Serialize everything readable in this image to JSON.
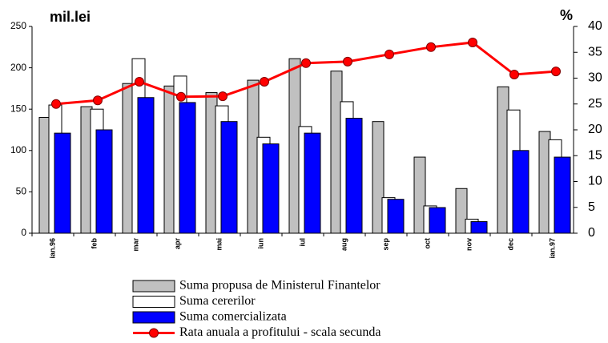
{
  "chart_data": {
    "type": "bar_line",
    "y_label": "mil.lei",
    "y2_label": "%",
    "categories": [
      "ian.96",
      "feb",
      "mar",
      "apr",
      "mai",
      "iun",
      "iul",
      "aug",
      "sep",
      "oct",
      "nov",
      "dec",
      "ian.97"
    ],
    "series": [
      {
        "name": "Suma propusa de Ministerul Finantelor",
        "color": "#c0c0c0",
        "type": "bar",
        "values": [
          140,
          153,
          181,
          178,
          170,
          185,
          211,
          196,
          135,
          92,
          54,
          177,
          123
        ]
      },
      {
        "name": "Suma cererilor",
        "color": "#ffffff",
        "type": "bar",
        "values": [
          155,
          150,
          211,
          190,
          154,
          116,
          129,
          159,
          43,
          33,
          17,
          149,
          113
        ]
      },
      {
        "name": "Suma comercializata",
        "color": "#0000ff",
        "type": "bar",
        "values": [
          121,
          125,
          164,
          158,
          135,
          108,
          121,
          139,
          41,
          31,
          14,
          100,
          92
        ]
      },
      {
        "name": "Rata anuala a profitului - scala secunda",
        "color": "#ff0000",
        "type": "line",
        "axis": "y2",
        "values": [
          25,
          25.7,
          29.3,
          26.4,
          26.5,
          29.3,
          32.9,
          33.2,
          34.6,
          36,
          36.9,
          30.7,
          31.3
        ]
      }
    ],
    "ylim": [
      0,
      250
    ],
    "yticks": [
      0,
      50,
      100,
      150,
      200,
      250
    ],
    "y2lim": [
      0,
      40
    ],
    "y2ticks": [
      0,
      5,
      10,
      15,
      20,
      25,
      30,
      35,
      40
    ]
  }
}
